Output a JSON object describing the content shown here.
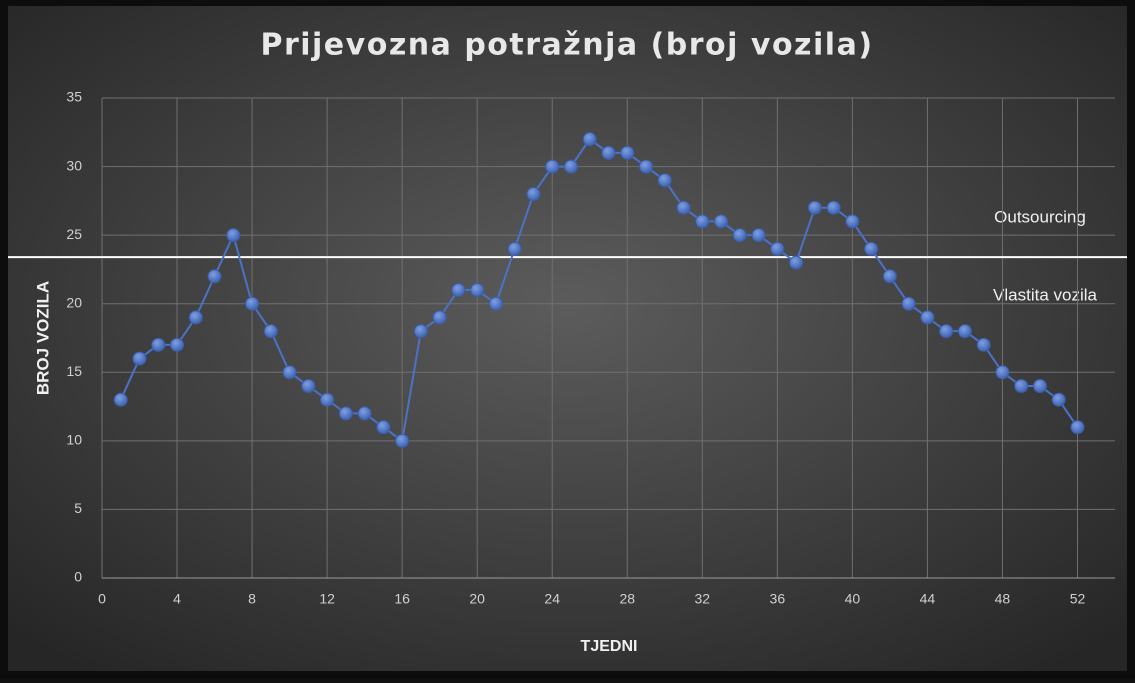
{
  "chart_data": {
    "type": "line",
    "title": "Prijevozna potražnja (broj vozila)",
    "x_label": "TJEDNI",
    "y_label": "BROJ VOZILA",
    "x": [
      1,
      2,
      3,
      4,
      5,
      6,
      7,
      8,
      9,
      10,
      11,
      12,
      13,
      14,
      15,
      16,
      17,
      18,
      19,
      20,
      21,
      22,
      23,
      24,
      25,
      26,
      27,
      28,
      29,
      30,
      31,
      32,
      33,
      34,
      35,
      36,
      37,
      38,
      39,
      40,
      41,
      42,
      43,
      44,
      45,
      46,
      47,
      48,
      49,
      50,
      51,
      52
    ],
    "values": [
      13,
      16,
      17,
      17,
      19,
      22,
      25,
      20,
      18,
      15,
      14,
      13,
      12,
      12,
      11,
      10,
      18,
      19,
      21,
      21,
      20,
      24,
      28,
      30,
      30,
      32,
      31,
      31,
      30,
      29,
      27,
      26,
      26,
      25,
      25,
      24,
      23,
      27,
      27,
      26,
      24,
      22,
      20,
      19,
      18,
      18,
      17,
      15,
      14,
      14,
      13,
      11
    ],
    "color": "#4a72c8",
    "xlim": [
      0,
      54
    ],
    "xticks": [
      0,
      4,
      8,
      12,
      16,
      20,
      24,
      28,
      32,
      36,
      40,
      44,
      48,
      52
    ],
    "ylim": [
      0,
      35
    ],
    "yticks": [
      0,
      5,
      10,
      15,
      20,
      25,
      30,
      35
    ],
    "grid": true,
    "threshold": 23.4,
    "annotations": [
      "Outsourcing",
      "Vlastita vozila"
    ]
  }
}
